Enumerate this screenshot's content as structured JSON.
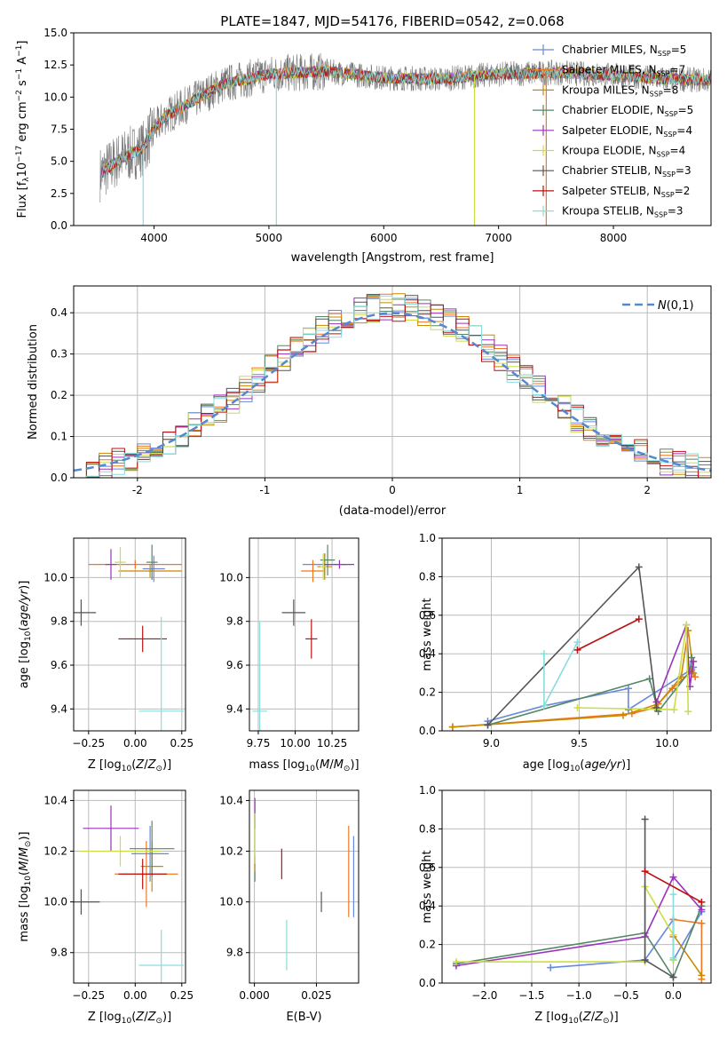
{
  "colors": {
    "series": [
      "#6688dd",
      "#ee7722",
      "#cc8800",
      "#558866",
      "#9933bb",
      "#ccdd44",
      "#555555",
      "#bb1111",
      "#88dddd"
    ],
    "spectrum_obs": "#777777",
    "gauss": "#5588cc",
    "grid": "#bbbbbb"
  },
  "chart_data": [
    {
      "id": "spectrum",
      "type": "line",
      "title": "PLATE=1847, MJD=54176, FIBERID=0542, z=0.068",
      "xlabel": "wavelength [Angstrom, rest frame]",
      "ylabel": "Flux [f_λ10^-17 erg cm^-2 s^-1 A^-1]",
      "xlim": [
        3300,
        8850
      ],
      "ylim": [
        0,
        15
      ],
      "xticks": [
        4000,
        5000,
        6000,
        7000,
        8000
      ],
      "yticks": [
        0.0,
        2.5,
        5.0,
        7.5,
        10.0,
        12.5,
        15.0
      ],
      "grid": false,
      "legend": "top-right",
      "continuum": {
        "x": [
          3530,
          3600,
          3700,
          3800,
          3900,
          4000,
          4100,
          4200,
          4400,
          4600,
          5000,
          5500,
          6000,
          6500,
          7000,
          7500,
          8000,
          8500,
          8850
        ],
        "y": [
          4.0,
          4.5,
          5.2,
          5.6,
          6.0,
          7.5,
          8.5,
          9.0,
          10.0,
          11.0,
          11.8,
          12.0,
          11.5,
          11.4,
          11.8,
          11.9,
          11.7,
          11.4,
          11.3
        ]
      },
      "drops": [
        {
          "x": 3905,
          "y": 0.0
        },
        {
          "x": 5065,
          "y": 0.0
        },
        {
          "x": 6790,
          "y": 0.0
        },
        {
          "x": 7415,
          "y": 0.0
        }
      ],
      "series_names": [
        "Chabrier MILES, N_SSP=5",
        "Salpeter MILES, N_SSP=7",
        "Kroupa MILES, N_SSP=8",
        "Chabrier ELODIE, N_SSP=5",
        "Salpeter ELODIE, N_SSP=4",
        "Kroupa ELODIE, N_SSP=4",
        "Chabrier STELIB, N_SSP=3",
        "Salpeter STELIB, N_SSP=2",
        "Kroupa STELIB, N_SSP=3"
      ]
    },
    {
      "id": "residuals",
      "type": "histogram",
      "xlabel": "(data-model)/error",
      "ylabel": "Normed distribution",
      "xlim": [
        -2.5,
        2.5
      ],
      "ylim": [
        0,
        0.465
      ],
      "xticks": [
        -2,
        -1,
        0,
        1,
        2
      ],
      "yticks": [
        0.0,
        0.1,
        0.2,
        0.3,
        0.4
      ],
      "grid": true,
      "legend": "top-right",
      "gauss_label": "N(0,1)",
      "bin_width": 0.1
    },
    {
      "id": "age-vs-Z",
      "type": "scatter",
      "xlabel": "Z [log10(Z/Z⊙)]",
      "ylabel": "age  [log10(age/yr)]",
      "xlim": [
        -0.33,
        0.27
      ],
      "ylim": [
        9.3,
        10.18
      ],
      "xticks": [
        -0.25,
        0.0,
        0.25
      ],
      "xticklabels": [
        "−0.25",
        "0.00",
        "0.25"
      ],
      "yticks": [
        9.4,
        9.6,
        9.8,
        10.0
      ],
      "grid": true,
      "points": [
        {
          "x": 0.1,
          "y": 10.04,
          "ex": 0.06,
          "ey": 0.06
        },
        {
          "x": 0.0,
          "y": 10.06,
          "ex": 0.25,
          "ey": 0.02
        },
        {
          "x": 0.08,
          "y": 10.03,
          "ex": 0.17,
          "ey": 0.03
        },
        {
          "x": 0.09,
          "y": 10.07,
          "ex": 0.03,
          "ey": 0.08
        },
        {
          "x": -0.13,
          "y": 10.06,
          "ex": 0.03,
          "ey": 0.07
        },
        {
          "x": -0.08,
          "y": 10.07,
          "ex": 0.03,
          "ey": 0.07
        },
        {
          "x": -0.29,
          "y": 9.84,
          "ex": 0.08,
          "ey": 0.06
        },
        {
          "x": 0.04,
          "y": 9.72,
          "ex": 0.13,
          "ey": 0.06
        },
        {
          "x": 0.14,
          "y": 9.39,
          "ex": 0.12,
          "ey": 0.43
        }
      ]
    },
    {
      "id": "age-vs-mass",
      "type": "scatter",
      "xlabel": "mass [log10(M/M⊙)]",
      "ylabel": "",
      "xlim": [
        9.69,
        10.43
      ],
      "ylim": [
        9.3,
        10.18
      ],
      "xticks": [
        9.75,
        10.0,
        10.25
      ],
      "xticklabels": [
        "9.75",
        "10.00",
        "10.25"
      ],
      "yticks": [
        9.4,
        9.6,
        9.8,
        10.0
      ],
      "grid": true,
      "points": [
        {
          "x": 10.2,
          "y": 10.06,
          "ex": 0.15,
          "ey": 0.05
        },
        {
          "x": 10.12,
          "y": 10.03,
          "ex": 0.08,
          "ey": 0.05
        },
        {
          "x": 10.2,
          "y": 10.05,
          "ex": 0.05,
          "ey": 0.06
        },
        {
          "x": 10.22,
          "y": 10.08,
          "ex": 0.05,
          "ey": 0.07
        },
        {
          "x": 10.3,
          "y": 10.06,
          "ex": 0.1,
          "ey": 0.02
        },
        {
          "x": 10.19,
          "y": 10.05,
          "ex": 0.02,
          "ey": 0.06
        },
        {
          "x": 9.99,
          "y": 9.84,
          "ex": 0.08,
          "ey": 0.06
        },
        {
          "x": 10.11,
          "y": 9.72,
          "ex": 0.04,
          "ey": 0.09
        },
        {
          "x": 9.76,
          "y": 9.39,
          "ex": 0.05,
          "ey": 0.41
        }
      ]
    },
    {
      "id": "weights-vs-age",
      "type": "line",
      "xlabel": "age  [log10(age/yr)]",
      "ylabel": "mass weight",
      "xlim": [
        8.72,
        10.25
      ],
      "ylim": [
        0,
        1.0
      ],
      "xticks": [
        9.0,
        9.5,
        10.0
      ],
      "xticklabels": [
        "9.0",
        "9.5",
        "10.0"
      ],
      "yticks": [
        0.0,
        0.2,
        0.4,
        0.6,
        0.8,
        1.0
      ],
      "grid": true,
      "series": [
        {
          "x": [
            8.98,
            9.3,
            9.78,
            9.78,
            10.14,
            10.15
          ],
          "y": [
            0.05,
            0.13,
            0.22,
            0.11,
            0.32,
            0.33
          ]
        },
        {
          "x": [
            8.78,
            9.8,
            9.93,
            10.03,
            10.14,
            10.16
          ],
          "y": [
            0.02,
            0.09,
            0.12,
            0.22,
            0.31,
            0.28
          ]
        },
        {
          "x": [
            8.78,
            9.75,
            9.95,
            10.08,
            10.12,
            10.15
          ],
          "y": [
            0.02,
            0.08,
            0.14,
            0.28,
            0.52,
            0.3
          ]
        },
        {
          "x": [
            8.98,
            9.9,
            9.95,
            10.13,
            10.14
          ],
          "y": [
            0.03,
            0.27,
            0.1,
            0.31,
            0.38
          ]
        },
        {
          "x": [
            9.94,
            10.11,
            10.13,
            10.15
          ],
          "y": [
            0.15,
            0.55,
            0.23,
            0.36
          ]
        },
        {
          "x": [
            9.49,
            10.04,
            10.11,
            10.12
          ],
          "y": [
            0.12,
            0.11,
            0.55,
            0.1
          ]
        },
        {
          "x": [
            8.98,
            9.84,
            9.94
          ],
          "y": [
            0.03,
            0.85,
            0.12
          ]
        },
        {
          "x": [
            9.49,
            9.84
          ],
          "y": [
            0.42,
            0.58
          ]
        },
        {
          "x": [
            9.3,
            9.3,
            9.49
          ],
          "y": [
            0.4,
            0.13,
            0.46
          ]
        }
      ]
    },
    {
      "id": "mass-vs-Z",
      "type": "scatter",
      "xlabel": "Z [log10(Z/Z⊙)]",
      "ylabel": "mass [log10(M/M⊙)]",
      "xlim": [
        -0.33,
        0.27
      ],
      "ylim": [
        9.68,
        10.44
      ],
      "xticks": [
        -0.25,
        0.0,
        0.25
      ],
      "xticklabels": [
        "−0.25",
        "0.00",
        "0.25"
      ],
      "yticks": [
        9.8,
        10.0,
        10.2,
        10.4
      ],
      "grid": true,
      "points": [
        {
          "x": 0.08,
          "y": 10.19,
          "ex": 0.1,
          "ey": 0.11
        },
        {
          "x": 0.06,
          "y": 10.11,
          "ex": 0.17,
          "ey": 0.13
        },
        {
          "x": 0.09,
          "y": 10.14,
          "ex": 0.06,
          "ey": 0.1
        },
        {
          "x": 0.09,
          "y": 10.21,
          "ex": 0.12,
          "ey": 0.11
        },
        {
          "x": -0.13,
          "y": 10.29,
          "ex": 0.15,
          "ey": 0.09
        },
        {
          "x": -0.08,
          "y": 10.2,
          "ex": 0.22,
          "ey": 0.06
        },
        {
          "x": -0.29,
          "y": 10.0,
          "ex": 0.1,
          "ey": 0.05
        },
        {
          "x": 0.04,
          "y": 10.11,
          "ex": 0.13,
          "ey": 0.06
        },
        {
          "x": 0.14,
          "y": 9.75,
          "ex": 0.12,
          "ey": 0.14
        }
      ]
    },
    {
      "id": "mass-vs-EBV",
      "type": "scatter",
      "xlabel": "E(B-V)",
      "ylabel": "",
      "xlim": [
        -0.002,
        0.042
      ],
      "ylim": [
        9.68,
        10.44
      ],
      "xticks": [
        0.0,
        0.025
      ],
      "xticklabels": [
        "0.000",
        "0.025"
      ],
      "yticks": [
        9.8,
        10.0,
        10.2,
        10.4
      ],
      "grid": true,
      "points": [
        {
          "x": 0.04,
          "y": 10.1,
          "ex": 0,
          "ey": 0.16
        },
        {
          "x": 0.038,
          "y": 10.12,
          "ex": 0,
          "ey": 0.18
        },
        {
          "x": 0.0002,
          "y": 10.15,
          "ex": 0,
          "ey": 0.03
        },
        {
          "x": 0.0002,
          "y": 10.1,
          "ex": 0,
          "ey": 0.02
        },
        {
          "x": 0.0002,
          "y": 10.35,
          "ex": 0,
          "ey": 0.06
        },
        {
          "x": 0.0002,
          "y": 10.25,
          "ex": 0,
          "ey": 0.1
        },
        {
          "x": 0.027,
          "y": 10.0,
          "ex": 0,
          "ey": 0.04
        },
        {
          "x": 0.011,
          "y": 10.15,
          "ex": 0,
          "ey": 0.06
        },
        {
          "x": 0.013,
          "y": 9.83,
          "ex": 0,
          "ey": 0.1
        }
      ]
    },
    {
      "id": "weights-vs-Z",
      "type": "line",
      "xlabel": "Z [log10(Z/Z⊙)]",
      "ylabel": "mass weight",
      "xlim": [
        -2.45,
        0.4
      ],
      "ylim": [
        0,
        1.0
      ],
      "xticks": [
        -2.0,
        -1.5,
        -1.0,
        -0.5,
        0.0
      ],
      "xticklabels": [
        "−2.0",
        "−1.5",
        "−1.0",
        "−0.5",
        "0.0"
      ],
      "yticks": [
        0.0,
        0.2,
        0.4,
        0.6,
        0.8,
        1.0
      ],
      "grid": true,
      "series": [
        {
          "x": [
            -1.3,
            -0.3,
            0.0,
            0.0,
            0.3
          ],
          "y": [
            0.08,
            0.12,
            0.33,
            0.12,
            0.37
          ]
        },
        {
          "x": [
            0.0,
            0.0,
            0.3,
            0.3
          ],
          "y": [
            0.24,
            0.33,
            0.31,
            0.02
          ]
        },
        {
          "x": [
            0.0,
            0.3
          ],
          "y": [
            0.25,
            0.04
          ]
        },
        {
          "x": [
            -2.3,
            -0.3,
            0.0,
            0.3
          ],
          "y": [
            0.1,
            0.26,
            0.03,
            0.4
          ]
        },
        {
          "x": [
            -2.3,
            -0.3,
            0.0,
            0.3
          ],
          "y": [
            0.09,
            0.24,
            0.55,
            0.38
          ]
        },
        {
          "x": [
            -2.3,
            -0.3,
            -0.3,
            0.0,
            0.0
          ],
          "y": [
            0.11,
            0.11,
            0.5,
            0.25,
            0.12
          ]
        },
        {
          "x": [
            -0.3,
            -0.3,
            0.0
          ],
          "y": [
            0.85,
            0.12,
            0.03
          ]
        },
        {
          "x": [
            -0.3,
            0.3
          ],
          "y": [
            0.58,
            0.42
          ]
        },
        {
          "x": [
            0.0,
            0.0
          ],
          "y": [
            0.13,
            0.46
          ]
        }
      ]
    }
  ]
}
